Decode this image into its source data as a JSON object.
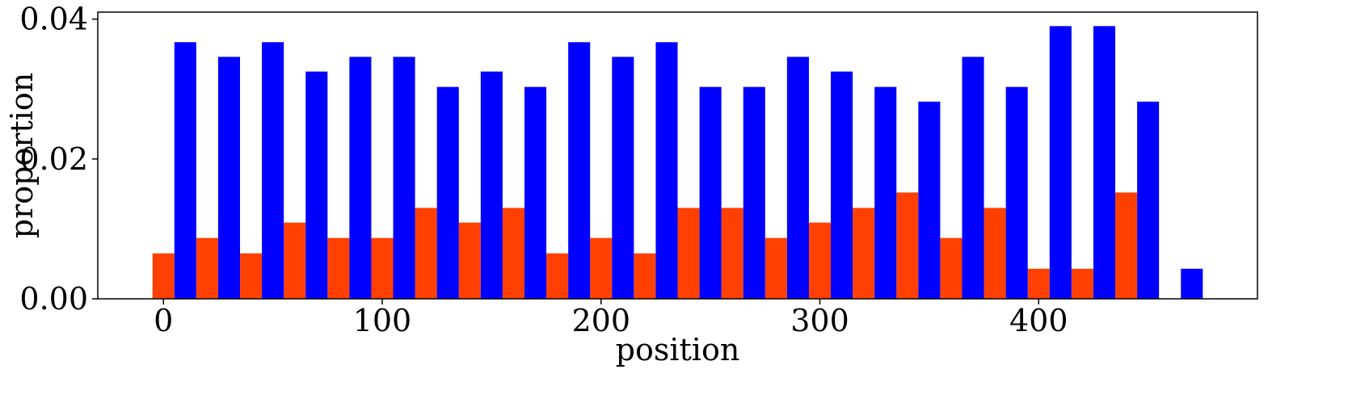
{
  "chart_data": {
    "type": "bar",
    "xlabel": "position",
    "ylabel": "proportion",
    "xlim": [
      -30,
      500
    ],
    "ylim": [
      0,
      0.041
    ],
    "x_ticks": [
      0,
      100,
      200,
      300,
      400
    ],
    "x_tick_labels": [
      "0",
      "100",
      "200",
      "300",
      "400"
    ],
    "y_ticks": [
      0,
      0.02,
      0.04
    ],
    "y_tick_labels": [
      "0.00",
      "0.02",
      "0.04"
    ],
    "bin_width": 20,
    "bin_starts": [
      -5,
      15,
      35,
      55,
      75,
      95,
      115,
      135,
      155,
      175,
      195,
      215,
      235,
      255,
      275,
      295,
      315,
      335,
      355,
      375,
      395,
      415,
      435,
      455
    ],
    "series": [
      {
        "color": "#FF4000",
        "values": [
          0.0065,
          0.0087,
          0.0065,
          0.0109,
          0.0087,
          0.0087,
          0.013,
          0.0109,
          0.013,
          0.0065,
          0.0087,
          0.0065,
          0.013,
          0.013,
          0.0087,
          0.0109,
          0.013,
          0.0152,
          0.0087,
          0.013,
          0.0043,
          0.0043,
          0.0152,
          0.0
        ]
      },
      {
        "color": "#0000FF",
        "values": [
          0.0367,
          0.0346,
          0.0367,
          0.0325,
          0.0346,
          0.0346,
          0.0303,
          0.0325,
          0.0303,
          0.0367,
          0.0346,
          0.0367,
          0.0303,
          0.0303,
          0.0346,
          0.0325,
          0.0303,
          0.0282,
          0.0346,
          0.0303,
          0.039,
          0.039,
          0.0282,
          0.0043
        ]
      }
    ],
    "grid": false,
    "legend": "none"
  }
}
